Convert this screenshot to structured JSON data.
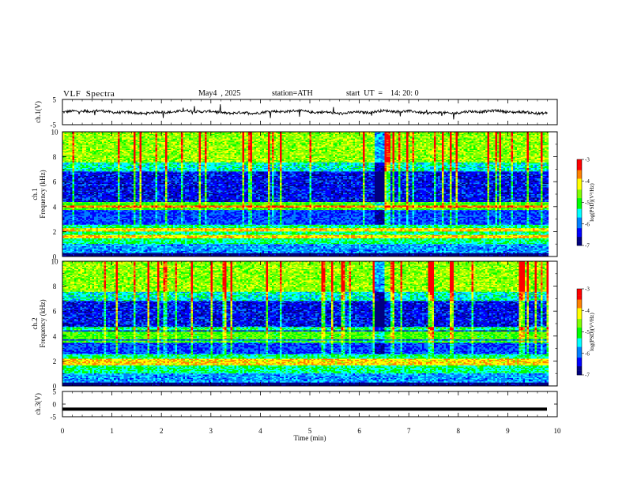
{
  "header": {
    "title": "VLF  Spectra",
    "date": "May4  , 2025",
    "station": "station=ATH",
    "start": "start  UT  =    14: 20: 0"
  },
  "colors": {
    "background": "#ffffff",
    "trace": "#000000",
    "colormap": [
      "#00007f",
      "#0000ff",
      "#0080ff",
      "#00ffff",
      "#00ff00",
      "#80ff00",
      "#ffff00",
      "#ff8000",
      "#ff0000",
      "#ffffff"
    ]
  },
  "chart_data": [
    {
      "type": "line",
      "panel": "ch1-waveform",
      "ylabel": "ch.1(V)",
      "ylim": [
        -5,
        5
      ],
      "yticks": [
        "5",
        "-5"
      ],
      "xlim": [
        0,
        10
      ],
      "note_values": "noisy waveform around 0 V, occasional spikes reaching ~±3 V"
    },
    {
      "type": "heatmap",
      "panel": "ch1-spectrogram",
      "ylabel": "ch.1\nFrequency  (kHz)",
      "ylabel_line1": "ch.1",
      "ylabel_line2": "Frequency  (kHz)",
      "ylim": [
        0,
        10
      ],
      "yticks": [
        "0",
        "2",
        "4",
        "6",
        "8",
        "10"
      ],
      "xlim": [
        0,
        10
      ],
      "colorbar": {
        "label": "log(PSD)(V²/Hz)",
        "ticks": [
          "-3",
          "-4",
          "-5",
          "-6",
          "-7"
        ],
        "range": [
          -7,
          -3
        ]
      }
    },
    {
      "type": "heatmap",
      "panel": "ch2-spectrogram",
      "ylabel_line1": "ch.2",
      "ylabel_line2": "Frequency  (kHz)",
      "ylim": [
        0,
        10
      ],
      "yticks": [
        "0",
        "2",
        "4",
        "6",
        "8",
        "10"
      ],
      "xlim": [
        0,
        10
      ],
      "colorbar": {
        "label": "log(PSD)(V²/Hz)",
        "ticks": [
          "-3",
          "-4",
          "-5",
          "-6",
          "-7"
        ],
        "range": [
          -7,
          -3
        ]
      }
    },
    {
      "type": "line",
      "panel": "ch3-waveform",
      "ylabel": "ch.3(V)",
      "ylim": [
        -5,
        5
      ],
      "yticks": [
        "5",
        "0",
        "-5"
      ],
      "xlim": [
        0,
        10
      ],
      "values_constant": -2
    }
  ],
  "xaxis": {
    "label": "Time  (min)",
    "ticks": [
      "0",
      "1",
      "2",
      "3",
      "4",
      "5",
      "6",
      "7",
      "8",
      "9",
      "10"
    ],
    "range": [
      0,
      10
    ]
  }
}
